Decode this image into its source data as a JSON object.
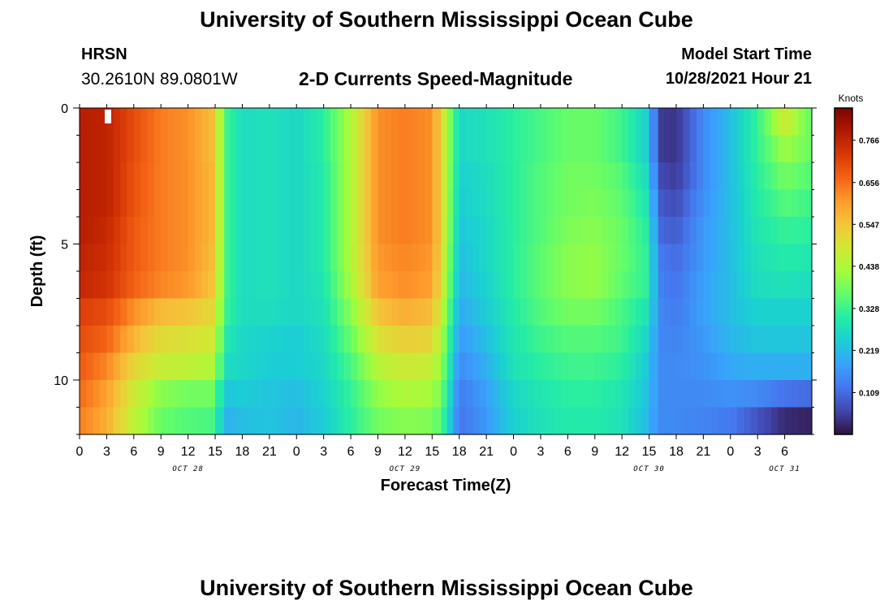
{
  "header": {
    "title": "University of Southern Mississippi Ocean Cube",
    "station": "HRSN",
    "coords": "30.2610N  89.0801W",
    "subtitle": "2-D Currents Speed-Magnitude",
    "model_start_label": "Model Start Time",
    "model_start_value": "10/28/2021 Hour 21"
  },
  "footer": {
    "title": "University of Southern Mississippi Ocean Cube"
  },
  "colorbar": {
    "unit_label": "Knots",
    "tick_labels": [
      "0.766",
      "0.656",
      "0.547",
      "0.438",
      "0.328",
      "0.219",
      "0.109"
    ],
    "tick_values": [
      0.766,
      0.656,
      0.547,
      0.438,
      0.328,
      0.219,
      0.109
    ],
    "range": [
      0.0,
      0.85
    ],
    "colors": [
      "#30123b",
      "#4145ab",
      "#4675ed",
      "#39a2fc",
      "#1bcfd4",
      "#24eca6",
      "#61fc6c",
      "#a4fc3b",
      "#d1e834",
      "#f3c63a",
      "#fe9b2d",
      "#f36315",
      "#d93806",
      "#b11901",
      "#7a0402"
    ]
  },
  "chart_data": {
    "type": "heatmap",
    "title": "2-D Currents Speed-Magnitude",
    "xlabel": "Forecast Time(Z)",
    "ylabel": "Depth (ft)",
    "xlim": [
      0,
      81
    ],
    "ylim": [
      12,
      0
    ],
    "x_tick_labels": [
      "0",
      "3",
      "6",
      "9",
      "12",
      "15",
      "18",
      "21",
      "0",
      "3",
      "6",
      "9",
      "12",
      "15",
      "18",
      "21",
      "0",
      "3",
      "6",
      "9",
      "12",
      "15",
      "18",
      "21",
      "0",
      "3",
      "6"
    ],
    "y_ticks": [
      0,
      5,
      10
    ],
    "y_tick_labels": [
      "0",
      "5",
      "10"
    ],
    "date_labels": [
      {
        "text": "OCT 28",
        "x": 12
      },
      {
        "text": "OCT 29",
        "x": 36
      },
      {
        "text": "OCT 30",
        "x": 63
      },
      {
        "text": "OCT 31",
        "x": 78
      }
    ],
    "x_hours": [
      0,
      3,
      6,
      9,
      12,
      15,
      16,
      18,
      21,
      24,
      27,
      30,
      33,
      36,
      39,
      40,
      42,
      45,
      48,
      51,
      54,
      57,
      60,
      63,
      64,
      66,
      69,
      72,
      75,
      78,
      81
    ],
    "depth_rows_ft": [
      0.5,
      1.5,
      2.5,
      3.5,
      4.5,
      5.5,
      6.5,
      7.5,
      8.5,
      9.5,
      10.5,
      11.5
    ],
    "speed_knots": [
      [
        0.78,
        0.77,
        0.7,
        0.64,
        0.62,
        0.55,
        0.34,
        0.27,
        0.28,
        0.26,
        0.31,
        0.44,
        0.62,
        0.64,
        0.62,
        0.52,
        0.26,
        0.28,
        0.31,
        0.34,
        0.37,
        0.37,
        0.33,
        0.24,
        0.05,
        0.04,
        0.15,
        0.22,
        0.32,
        0.48,
        0.36
      ],
      [
        0.78,
        0.77,
        0.7,
        0.64,
        0.62,
        0.55,
        0.34,
        0.27,
        0.28,
        0.26,
        0.31,
        0.44,
        0.62,
        0.64,
        0.62,
        0.52,
        0.26,
        0.28,
        0.31,
        0.34,
        0.37,
        0.37,
        0.33,
        0.24,
        0.05,
        0.04,
        0.15,
        0.22,
        0.32,
        0.42,
        0.37
      ],
      [
        0.78,
        0.77,
        0.69,
        0.64,
        0.62,
        0.56,
        0.34,
        0.27,
        0.28,
        0.26,
        0.3,
        0.44,
        0.62,
        0.64,
        0.62,
        0.52,
        0.25,
        0.27,
        0.31,
        0.35,
        0.38,
        0.38,
        0.35,
        0.26,
        0.07,
        0.05,
        0.15,
        0.22,
        0.31,
        0.38,
        0.35
      ],
      [
        0.78,
        0.77,
        0.69,
        0.64,
        0.62,
        0.56,
        0.34,
        0.27,
        0.28,
        0.26,
        0.3,
        0.44,
        0.62,
        0.64,
        0.62,
        0.52,
        0.24,
        0.27,
        0.31,
        0.35,
        0.38,
        0.39,
        0.36,
        0.28,
        0.09,
        0.07,
        0.16,
        0.22,
        0.3,
        0.35,
        0.33
      ],
      [
        0.78,
        0.76,
        0.68,
        0.64,
        0.62,
        0.56,
        0.34,
        0.27,
        0.28,
        0.26,
        0.3,
        0.44,
        0.62,
        0.64,
        0.62,
        0.52,
        0.23,
        0.26,
        0.31,
        0.35,
        0.39,
        0.4,
        0.37,
        0.3,
        0.11,
        0.09,
        0.17,
        0.22,
        0.29,
        0.32,
        0.31
      ],
      [
        0.77,
        0.75,
        0.68,
        0.64,
        0.62,
        0.55,
        0.34,
        0.27,
        0.28,
        0.26,
        0.3,
        0.44,
        0.61,
        0.63,
        0.61,
        0.51,
        0.22,
        0.26,
        0.31,
        0.36,
        0.4,
        0.41,
        0.37,
        0.31,
        0.13,
        0.11,
        0.17,
        0.22,
        0.28,
        0.3,
        0.29
      ],
      [
        0.76,
        0.74,
        0.67,
        0.63,
        0.61,
        0.54,
        0.34,
        0.27,
        0.28,
        0.26,
        0.29,
        0.43,
        0.6,
        0.62,
        0.6,
        0.5,
        0.21,
        0.25,
        0.31,
        0.36,
        0.4,
        0.41,
        0.36,
        0.31,
        0.14,
        0.12,
        0.18,
        0.22,
        0.27,
        0.28,
        0.27
      ],
      [
        0.72,
        0.7,
        0.62,
        0.56,
        0.55,
        0.51,
        0.33,
        0.27,
        0.27,
        0.26,
        0.28,
        0.4,
        0.55,
        0.58,
        0.56,
        0.47,
        0.19,
        0.24,
        0.3,
        0.35,
        0.38,
        0.38,
        0.34,
        0.28,
        0.15,
        0.13,
        0.18,
        0.22,
        0.25,
        0.25,
        0.25
      ],
      [
        0.7,
        0.67,
        0.57,
        0.51,
        0.5,
        0.48,
        0.3,
        0.26,
        0.25,
        0.24,
        0.27,
        0.37,
        0.5,
        0.53,
        0.52,
        0.44,
        0.17,
        0.22,
        0.29,
        0.33,
        0.35,
        0.35,
        0.33,
        0.25,
        0.15,
        0.14,
        0.17,
        0.21,
        0.23,
        0.23,
        0.23
      ],
      [
        0.68,
        0.63,
        0.52,
        0.47,
        0.46,
        0.44,
        0.27,
        0.26,
        0.24,
        0.24,
        0.26,
        0.34,
        0.45,
        0.48,
        0.47,
        0.41,
        0.15,
        0.2,
        0.28,
        0.31,
        0.33,
        0.33,
        0.31,
        0.23,
        0.15,
        0.15,
        0.16,
        0.19,
        0.2,
        0.2,
        0.2
      ],
      [
        0.66,
        0.6,
        0.48,
        0.4,
        0.38,
        0.38,
        0.23,
        0.24,
        0.23,
        0.22,
        0.25,
        0.32,
        0.41,
        0.44,
        0.43,
        0.38,
        0.13,
        0.18,
        0.26,
        0.29,
        0.31,
        0.31,
        0.29,
        0.22,
        0.15,
        0.15,
        0.15,
        0.16,
        0.15,
        0.12,
        0.11
      ],
      [
        0.64,
        0.58,
        0.46,
        0.37,
        0.35,
        0.34,
        0.2,
        0.22,
        0.23,
        0.21,
        0.24,
        0.31,
        0.38,
        0.4,
        0.39,
        0.35,
        0.12,
        0.17,
        0.25,
        0.28,
        0.3,
        0.3,
        0.28,
        0.21,
        0.15,
        0.15,
        0.14,
        0.13,
        0.08,
        0.03,
        0.02
      ]
    ]
  }
}
